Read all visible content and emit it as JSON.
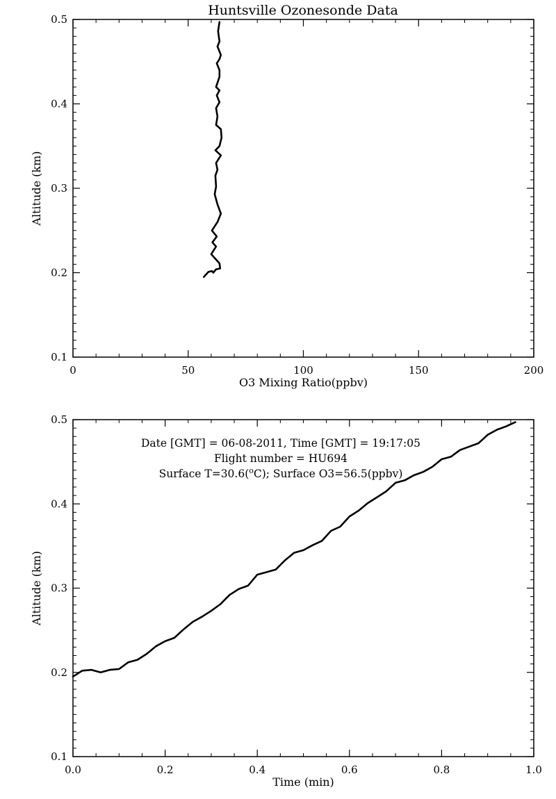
{
  "figure": {
    "title": "Huntsville Ozonesonde Data"
  },
  "chart_data": [
    {
      "type": "line",
      "xlabel": "O3 Mixing Ratio(ppbv)",
      "ylabel": "Altitude (km)",
      "xlim": [
        0,
        200
      ],
      "ylim": [
        0.1,
        0.5
      ],
      "xticks": [
        "0",
        "50",
        "100",
        "150",
        "200"
      ],
      "yticks": [
        "0.1",
        "0.2",
        "0.3",
        "0.4",
        "0.5"
      ],
      "grid": false,
      "series": [
        {
          "x": [
            56.8,
            58.8,
            60.3,
            60.9,
            62.1,
            63.9,
            63.6,
            60.0,
            62.1,
            60.5,
            62.4,
            60.3,
            62.7,
            64.2,
            62.7,
            61.5,
            62.1,
            61.8,
            62.7,
            62.1,
            64.2,
            61.8,
            63.6,
            64.5,
            64.2,
            62.1,
            62.7,
            62.1,
            63.6,
            62.4,
            63.6,
            62.1,
            63.6,
            63.6,
            62.4,
            63.6,
            64.2,
            62.7,
            63.6,
            63.0,
            63.6
          ],
          "y": [
            0.195,
            0.201,
            0.202,
            0.2,
            0.204,
            0.205,
            0.211,
            0.222,
            0.231,
            0.236,
            0.243,
            0.25,
            0.26,
            0.27,
            0.281,
            0.293,
            0.302,
            0.315,
            0.322,
            0.33,
            0.339,
            0.345,
            0.35,
            0.36,
            0.37,
            0.375,
            0.385,
            0.395,
            0.402,
            0.41,
            0.416,
            0.42,
            0.432,
            0.44,
            0.448,
            0.453,
            0.458,
            0.468,
            0.474,
            0.486,
            0.497
          ]
        }
      ]
    },
    {
      "type": "line",
      "xlabel": "Time (min)",
      "ylabel": "Altitude (km)",
      "xlim": [
        0.0,
        1.0
      ],
      "ylim": [
        0.1,
        0.5
      ],
      "xticks": [
        "0.0",
        "0.2",
        "0.4",
        "0.6",
        "0.8",
        "1.0"
      ],
      "yticks": [
        "0.1",
        "0.2",
        "0.3",
        "0.4",
        "0.5"
      ],
      "grid": false,
      "annotations": [
        "Date [GMT] = 06-08-2011,  Time [GMT] = 19:17:05",
        "Flight number = HU694"
      ],
      "annotation_surface": {
        "prefix": "Surface T=30.6(",
        "superscript": "o",
        "suffix": "C); Surface O3=56.5(ppbv)"
      },
      "series": [
        {
          "x": [
            0.0,
            0.02,
            0.04,
            0.06,
            0.08,
            0.1,
            0.12,
            0.14,
            0.16,
            0.18,
            0.2,
            0.22,
            0.24,
            0.26,
            0.28,
            0.3,
            0.32,
            0.34,
            0.36,
            0.38,
            0.4,
            0.42,
            0.44,
            0.46,
            0.48,
            0.5,
            0.52,
            0.54,
            0.56,
            0.58,
            0.6,
            0.62,
            0.64,
            0.66,
            0.68,
            0.7,
            0.72,
            0.74,
            0.76,
            0.78,
            0.8,
            0.82,
            0.84,
            0.86,
            0.88,
            0.9,
            0.92,
            0.94,
            0.96
          ],
          "y": [
            0.195,
            0.202,
            0.203,
            0.2,
            0.203,
            0.204,
            0.212,
            0.215,
            0.222,
            0.231,
            0.237,
            0.241,
            0.251,
            0.26,
            0.266,
            0.273,
            0.281,
            0.292,
            0.299,
            0.303,
            0.316,
            0.319,
            0.322,
            0.333,
            0.342,
            0.345,
            0.351,
            0.356,
            0.368,
            0.373,
            0.385,
            0.392,
            0.401,
            0.408,
            0.415,
            0.425,
            0.428,
            0.434,
            0.438,
            0.444,
            0.453,
            0.456,
            0.464,
            0.468,
            0.472,
            0.482,
            0.488,
            0.492,
            0.497
          ]
        }
      ]
    }
  ]
}
